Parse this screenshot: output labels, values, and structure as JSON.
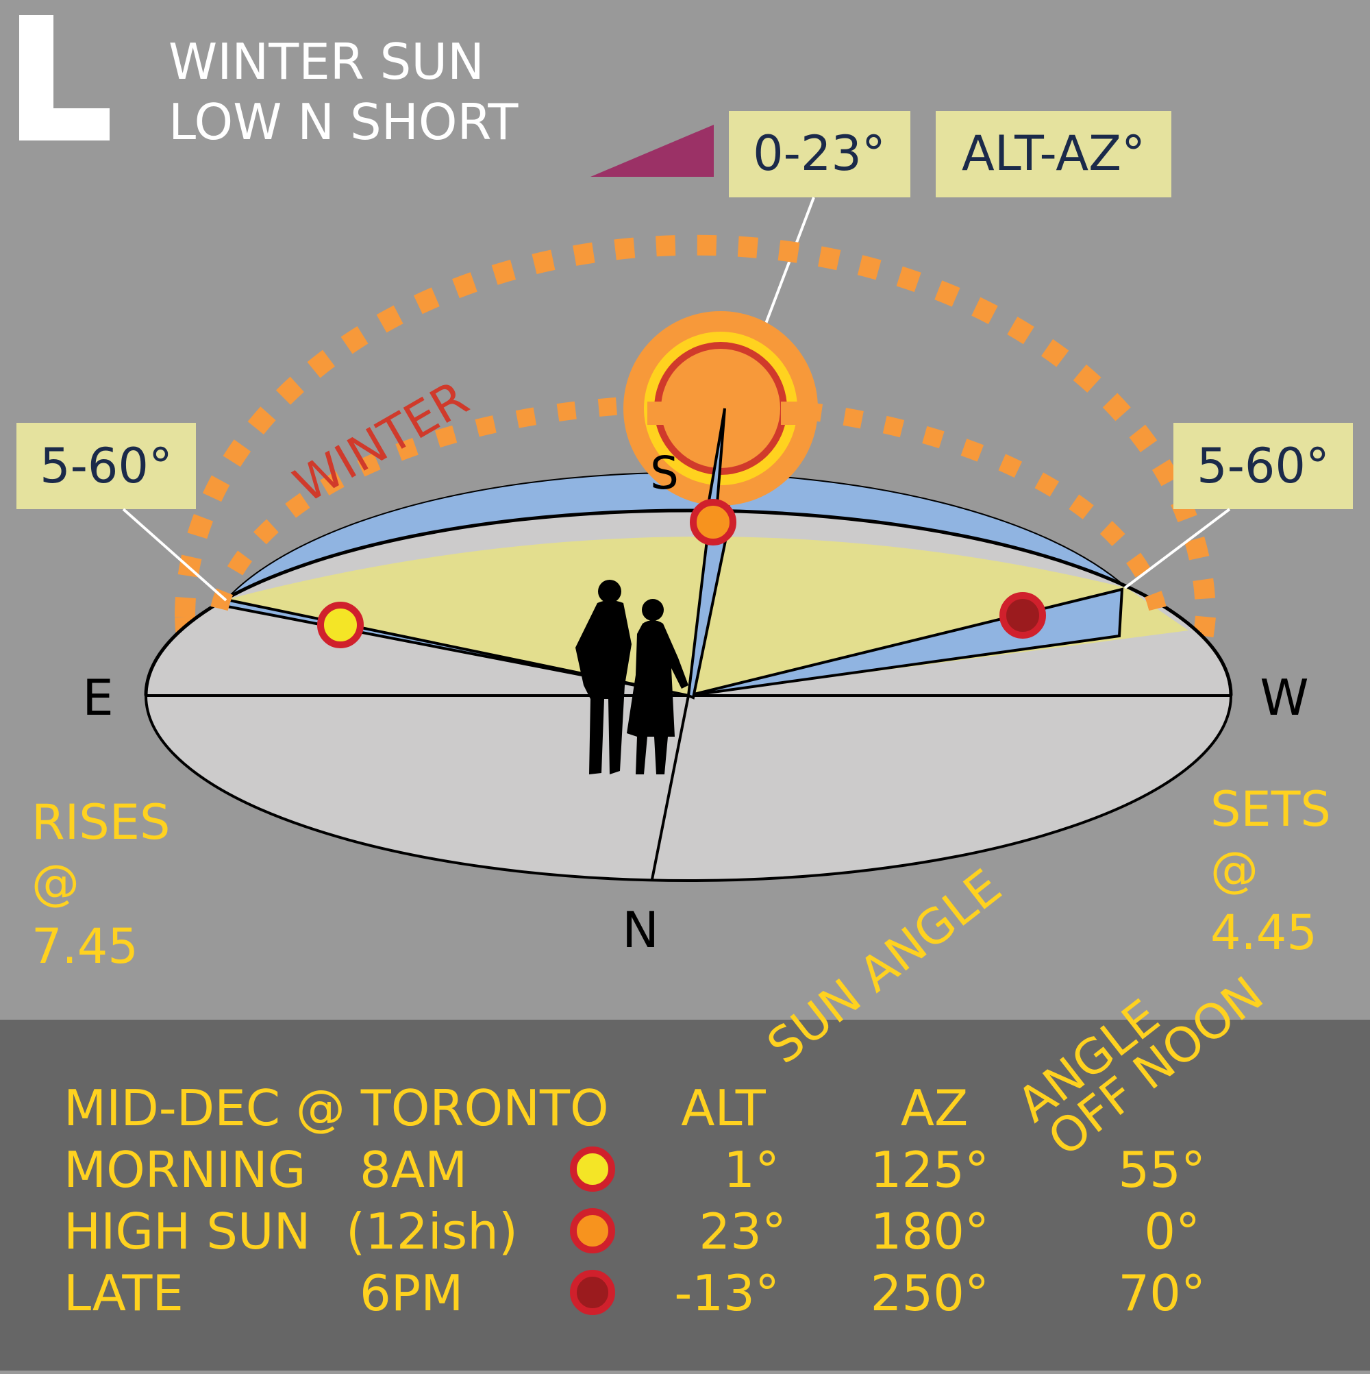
{
  "header": {
    "letter": "L",
    "title_line1": "WINTER SUN",
    "title_line2": "LOW N SHORT"
  },
  "labels": {
    "noon_range": "0-23°",
    "alt_az": "ALT-AZ°",
    "rise_range": "5-60°",
    "set_range": "5-60°",
    "season": "WINTER",
    "sun_angle": "SUN ANGLE",
    "angle_off_line1": "ANGLE",
    "angle_off_line2": "OFF NOON"
  },
  "compass": {
    "south": "S",
    "north": "N",
    "east": "E",
    "west": "W"
  },
  "rises": {
    "label": "RISES",
    "at": "@",
    "time": "7.45"
  },
  "sets": {
    "label": "SETS",
    "at": "@",
    "time": "4.45"
  },
  "table": {
    "header": {
      "label": "MID-DEC @ TORONTO",
      "alt": "ALT",
      "az": "AZ"
    },
    "rows": [
      {
        "name": "MORNING",
        "time": "8AM",
        "marker": "yellow-sun-marker",
        "alt": "1°",
        "az": "125°",
        "off_noon": "55°"
      },
      {
        "name": "HIGH SUN",
        "time": "(12ish)",
        "marker": "orange-sun-marker",
        "alt": "23°",
        "az": "180°",
        "off_noon": "0°"
      },
      {
        "name": "LATE",
        "time": "6PM",
        "marker": "darkred-sun-marker",
        "alt": "-13°",
        "az": "250°",
        "off_noon": "70°"
      }
    ]
  },
  "colors": {
    "background": "#999999",
    "footer": "#666666",
    "label_box": "#e5e29e",
    "label_text": "#1b2a4a",
    "accent_yellow": "#ffd21f",
    "orange": "#f7993a",
    "red": "#d03a2b",
    "sky_blue": "#90b4e1",
    "ground": "#cccbcb",
    "wedge_yellow": "#e3de8e",
    "purple": "#9b3166"
  }
}
